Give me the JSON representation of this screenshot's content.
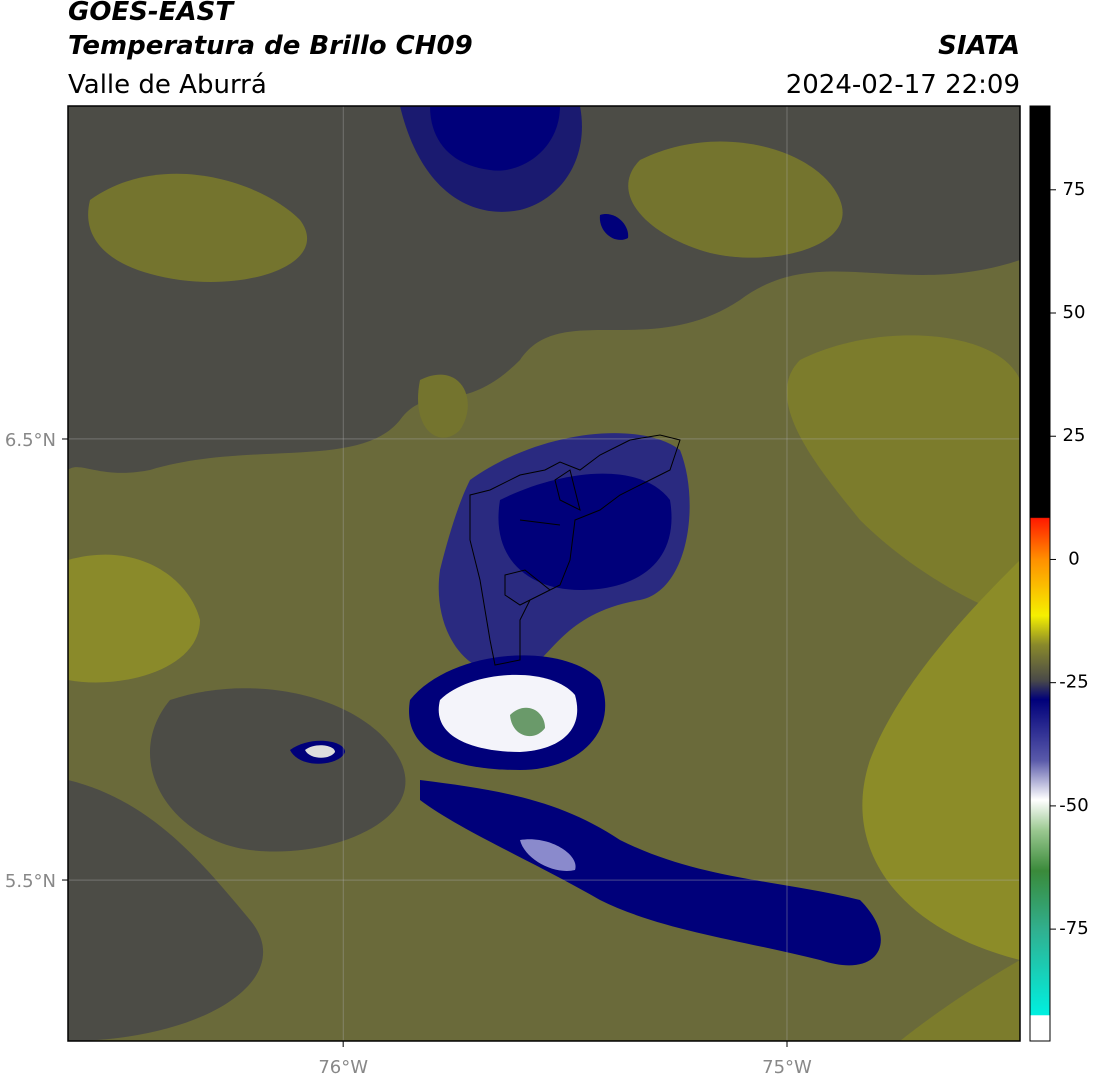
{
  "header": {
    "title": "GOES-EAST",
    "subtitle": "Temperatura de Brillo CH09",
    "region": "Valle de Aburrá",
    "source": "SIATA",
    "datetime": "2024-02-17 22:09"
  },
  "map": {
    "xlim": [
      -76.62,
      -74.475
    ],
    "ylim": [
      5.135,
      7.255
    ],
    "xticks": [
      {
        "value": -76,
        "label": "76°W"
      },
      {
        "value": -75,
        "label": "75°W"
      }
    ],
    "yticks": [
      {
        "value": 6.5,
        "label": "6.5°N"
      },
      {
        "value": 5.5,
        "label": "5.5°N"
      }
    ],
    "grid": true
  },
  "colorbar": {
    "lim": [
      -97.7,
      92
    ],
    "ticks": [
      75,
      50,
      25,
      0,
      -25,
      -50,
      -75
    ]
  }
}
